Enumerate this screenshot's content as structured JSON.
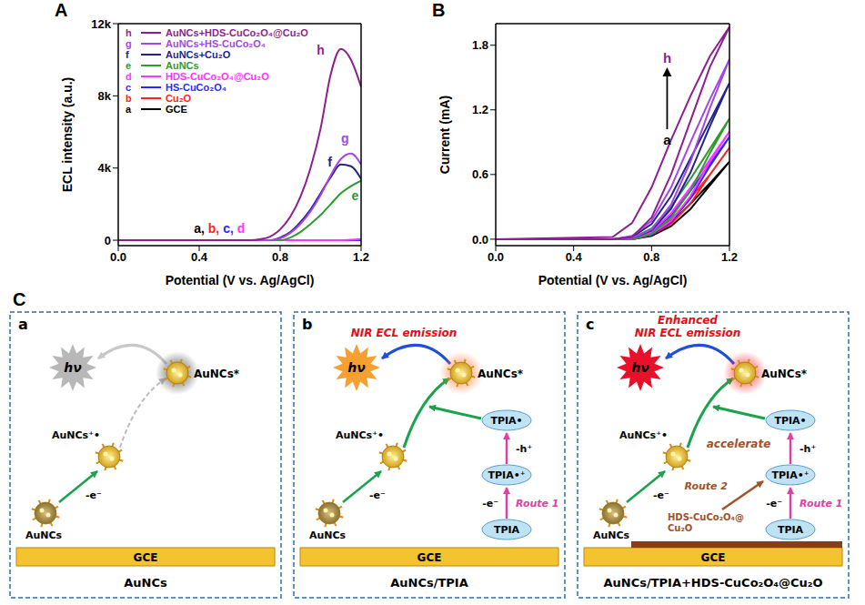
{
  "chart_data": [
    {
      "type": "line",
      "panel": "A",
      "x_label": "Potential (V vs. Ag/AgCl)",
      "y_label": "ECL intensity (a.u.)",
      "xlim": [
        0,
        1.2
      ],
      "xticks": [
        {
          "value": 0,
          "label": "0.0"
        },
        0.4,
        0.8,
        1.2
      ],
      "ylim": [
        -300,
        12000
      ],
      "yticks": [
        0,
        {
          "value": 4000,
          "label": "4k"
        },
        {
          "value": 8000,
          "label": "8k"
        },
        {
          "value": 12000,
          "label": "12k"
        }
      ],
      "legend": "top-left",
      "x": [
        0,
        0.05,
        0.1,
        0.15,
        0.2,
        0.25,
        0.3,
        0.35,
        0.4,
        0.45,
        0.5,
        0.55,
        0.6,
        0.65,
        0.7,
        0.75,
        0.8,
        0.85,
        0.9,
        0.95,
        1.0,
        1.05,
        1.1,
        1.15,
        1.2
      ],
      "series": [
        {
          "letter": "h",
          "name": "AuNCs+HDS-CuCo₂O₄@Cu₂O",
          "color": "#8E1F8E",
          "values": [
            0,
            0,
            0,
            0,
            0,
            0,
            0,
            0,
            0,
            0,
            0,
            0,
            0,
            0,
            50,
            200,
            600,
            1300,
            2400,
            4000,
            6200,
            9200,
            10600,
            10000,
            8500
          ]
        },
        {
          "letter": "g",
          "name": "AuNCs+HS-CuCo₂O₄",
          "color": "#A347E6",
          "values": [
            0,
            0,
            0,
            0,
            0,
            0,
            0,
            0,
            0,
            0,
            0,
            0,
            0,
            0,
            0,
            0,
            100,
            400,
            900,
            1600,
            2500,
            3600,
            4500,
            4800,
            4200
          ]
        },
        {
          "letter": "f",
          "name": "AuNCs+Cu₂O",
          "color": "#23238E",
          "values": [
            0,
            0,
            0,
            0,
            0,
            0,
            0,
            0,
            0,
            0,
            0,
            0,
            0,
            0,
            0,
            0,
            150,
            450,
            1000,
            1700,
            2600,
            3500,
            4200,
            4100,
            3400
          ]
        },
        {
          "letter": "e",
          "name": "AuNCs",
          "color": "#2E9B2E",
          "values": [
            0,
            0,
            0,
            0,
            0,
            0,
            0,
            0,
            0,
            0,
            0,
            0,
            0,
            0,
            0,
            0,
            0,
            150,
            450,
            900,
            1400,
            2000,
            2600,
            3000,
            3300
          ]
        },
        {
          "letter": "d",
          "name": "HDS-CuCo₂O₄@Cu₂O",
          "color": "#FF33FF",
          "values": [
            0,
            0,
            0,
            0,
            0,
            0,
            0,
            0,
            0,
            0,
            0,
            0,
            0,
            0,
            0,
            0,
            0,
            0,
            0,
            0,
            0,
            0,
            0,
            30,
            60
          ]
        },
        {
          "letter": "c",
          "name": "HS-CuCo₂O₄",
          "color": "#2B2BFF",
          "values": [
            0,
            0,
            0,
            0,
            0,
            0,
            0,
            0,
            0,
            0,
            0,
            0,
            0,
            0,
            0,
            0,
            0,
            0,
            0,
            0,
            0,
            0,
            0,
            0,
            0
          ]
        },
        {
          "letter": "b",
          "name": "Cu₂O",
          "color": "#FF2020",
          "values": [
            0,
            0,
            0,
            0,
            0,
            0,
            0,
            0,
            0,
            0,
            0,
            0,
            0,
            0,
            0,
            0,
            0,
            0,
            0,
            0,
            0,
            0,
            0,
            0,
            0
          ]
        },
        {
          "letter": "a",
          "name": "GCE",
          "color": "#000000",
          "values": [
            0,
            0,
            0,
            0,
            0,
            0,
            0,
            0,
            0,
            0,
            0,
            0,
            0,
            0,
            0,
            0,
            0,
            0,
            0,
            0,
            0,
            0,
            0,
            0,
            0
          ]
        }
      ],
      "annotations": [
        {
          "parts": [
            {
              "text": "a, ",
              "color": "#000000"
            },
            {
              "text": "b, ",
              "color": "#FF2020"
            },
            {
              "text": "c, ",
              "color": "#2B2BFF"
            },
            {
              "text": "d",
              "color": "#FF33FF"
            }
          ]
        }
      ]
    },
    {
      "type": "line",
      "panel": "B",
      "x_label": "Potential (V vs. Ag/AgCl)",
      "y_label": "Current (mA)",
      "xlim": [
        0,
        1.2
      ],
      "xticks": [
        {
          "value": 0,
          "label": "0.0"
        },
        0.4,
        0.8,
        1.2
      ],
      "ylim": [
        -0.06,
        2.0
      ],
      "yticks": [
        {
          "value": 0,
          "label": "0.0"
        },
        0.6,
        1.2,
        1.8
      ],
      "x": [
        0,
        0.6,
        0.7,
        0.8,
        0.9,
        1.0,
        1.1,
        1.2,
        1.1,
        1.0,
        0.9,
        0.8,
        0.7,
        0.6,
        0
      ],
      "series": [
        {
          "color": "#8E1F8E",
          "values": [
            0,
            0.02,
            0.15,
            0.48,
            0.92,
            1.33,
            1.7,
            1.97,
            1.6,
            1.1,
            0.6,
            0.2,
            0.02,
            0,
            0
          ]
        },
        {
          "color": "#A347E6",
          "values": [
            0,
            0,
            0.03,
            0.17,
            0.48,
            0.9,
            1.3,
            1.67,
            1.22,
            0.72,
            0.32,
            0.09,
            0.01,
            0,
            0
          ]
        },
        {
          "color": "#23238E",
          "values": [
            0,
            0,
            0.02,
            0.14,
            0.4,
            0.75,
            1.1,
            1.45,
            1.05,
            0.62,
            0.28,
            0.08,
            0.01,
            0,
            0
          ]
        },
        {
          "color": "#2E9B2E",
          "values": [
            0,
            0,
            0.01,
            0.1,
            0.3,
            0.56,
            0.84,
            1.12,
            0.8,
            0.45,
            0.2,
            0.05,
            0,
            0,
            0
          ]
        },
        {
          "color": "#FF33FF",
          "values": [
            0,
            0,
            0,
            0.07,
            0.24,
            0.48,
            0.74,
            1.0,
            0.72,
            0.4,
            0.17,
            0.05,
            0,
            0,
            0
          ]
        },
        {
          "color": "#2B2BFF",
          "values": [
            0,
            0,
            0,
            0.06,
            0.22,
            0.45,
            0.7,
            0.95,
            0.68,
            0.38,
            0.16,
            0.04,
            0,
            0,
            0
          ]
        },
        {
          "color": "#FF2020",
          "values": [
            0,
            0,
            0,
            0.05,
            0.18,
            0.38,
            0.6,
            0.85,
            0.6,
            0.33,
            0.14,
            0.04,
            0,
            0,
            0
          ]
        },
        {
          "color": "#000000",
          "values": [
            0,
            0,
            0,
            0.03,
            0.15,
            0.33,
            0.52,
            0.72,
            0.5,
            0.28,
            0.12,
            0.03,
            0,
            0,
            0
          ]
        }
      ],
      "annotations": [
        {
          "text": "h",
          "color": "#8E1F8E"
        },
        {
          "text": "a",
          "color": "#000000"
        }
      ]
    }
  ],
  "diagram": {
    "letter": "C",
    "panels": [
      {
        "letter": "a",
        "caption": "AuNCs",
        "electrode": "GCE",
        "ground": "AuNCs",
        "oxidized": "AuNCs⁺•",
        "excited": "AuNCs*",
        "electron": "-e⁻",
        "photon": "hν"
      },
      {
        "letter": "b",
        "caption": "AuNCs/TPIA",
        "electrode": "GCE",
        "ground": "AuNCs",
        "oxidized": "AuNCs⁺•",
        "excited": "AuNCs*",
        "electron": "-e⁻",
        "photon": "hν",
        "emission": [
          "NIR ECL emission"
        ],
        "coreactant": {
          "ground": "TPIA",
          "cation": "TPIA•⁺",
          "radical": "TPIA•",
          "electron": "-e⁻",
          "hole": "-h⁺",
          "route": "Route 1"
        }
      },
      {
        "letter": "c",
        "caption": "AuNCs/TPIA+HDS-CuCo₂O₄@Cu₂O",
        "electrode": "GCE",
        "ground": "AuNCs",
        "oxidized": "AuNCs⁺•",
        "excited": "AuNCs*",
        "electron": "-e⁻",
        "photon": "hν",
        "emission": [
          "Enhanced",
          "NIR ECL emission"
        ],
        "coreactant": {
          "ground": "TPIA",
          "cation": "TPIA•⁺",
          "radical": "TPIA•",
          "electron": "-e⁻",
          "hole": "-h⁺",
          "route": "Route 1"
        },
        "catalyst": [
          "HDS-CuCo₂O₄@",
          "Cu₂O"
        ],
        "catalyst_route": "Route 2",
        "accelerate": "accelerate"
      }
    ]
  }
}
